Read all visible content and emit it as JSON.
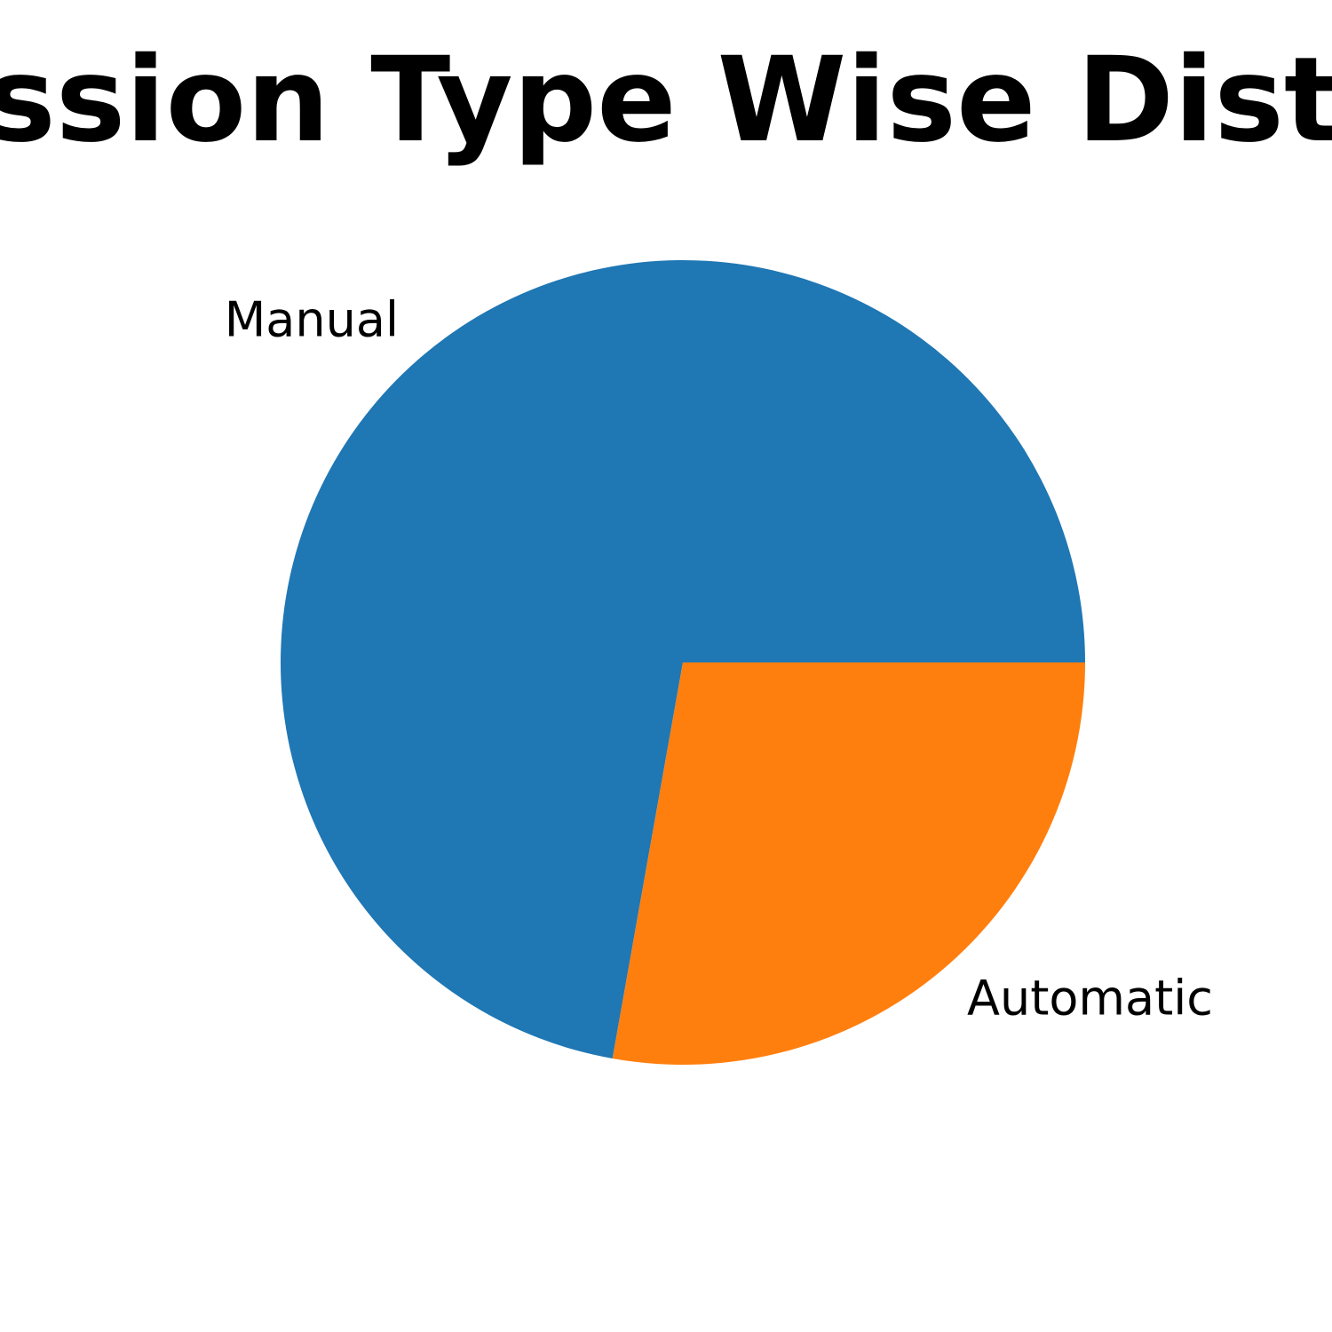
{
  "chart_data": {
    "type": "pie",
    "title": "Transmission Type Wise Distribution",
    "categories": [
      "Manual",
      "Automatic"
    ],
    "values": [
      72.2,
      27.8
    ],
    "colors": [
      "#1f77b4",
      "#ff7f0e"
    ],
    "legend": "none"
  }
}
